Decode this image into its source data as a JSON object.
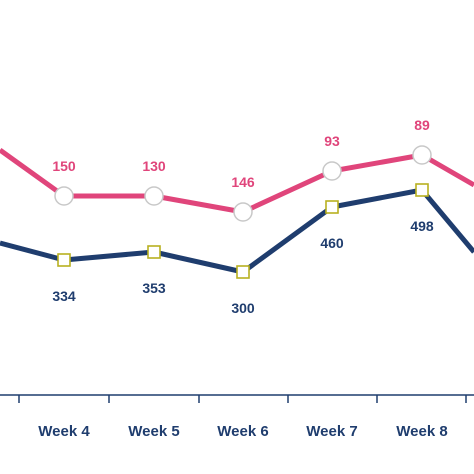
{
  "chart_data": {
    "type": "line",
    "categories": [
      "Week 4",
      "Week 5",
      "Week 6",
      "Week 7",
      "Week 8"
    ],
    "series": [
      {
        "values": [
          150,
          130,
          146,
          93,
          89
        ],
        "color": "#e0457b",
        "marker": "circle"
      },
      {
        "values": [
          334,
          353,
          300,
          460,
          498
        ],
        "color": "#1f3d6e",
        "marker": "square",
        "marker_color": "#b8b020"
      }
    ],
    "title": "",
    "xlabel": "",
    "ylabel": "",
    "grid": false,
    "axis_color": "#1f3d6e",
    "tick_color": "#1f3d6e"
  }
}
